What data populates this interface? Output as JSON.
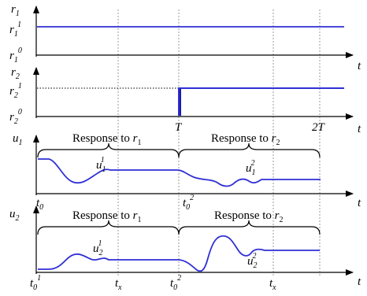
{
  "colors": {
    "signal": "#2f2fd6",
    "axis": "#000000",
    "grid": "#9a9a9a"
  },
  "panel1": {
    "y_label": "r",
    "y_label_sub": "1",
    "level_high": "r",
    "level_high_sub": "1",
    "level_high_sup": "1",
    "level_low": "r",
    "level_low_sub": "1",
    "level_low_sup": "0",
    "x_label": "t"
  },
  "panel2": {
    "y_label": "r",
    "y_label_sub": "2",
    "level_high": "r",
    "level_high_sub": "2",
    "level_high_sup": "1",
    "level_low": "r",
    "level_low_sub": "2",
    "level_low_sup": "0",
    "x_label": "t",
    "tick_T": "T",
    "tick_2T": "2T"
  },
  "panel3": {
    "y_label": "u",
    "y_label_sub": "1",
    "x_label": "t",
    "brace1_label": "Response to ",
    "brace1_var": "r",
    "brace1_sub": "1",
    "brace2_label": "Response to ",
    "brace2_var": "r",
    "brace2_sub": "2",
    "ann1": "u",
    "ann1_sub": "1",
    "ann1_sup": "1",
    "ann2": "u",
    "ann2_sub": "1",
    "ann2_sup": "2",
    "t0_left": "t",
    "t0_left_sub": "0",
    "t0_mid": "t",
    "t0_mid_sub": "0",
    "t0_mid_sup": "2"
  },
  "panel4": {
    "y_label": "u",
    "y_label_sub": "2",
    "x_label": "t",
    "brace1_label": "Response to ",
    "brace1_var": "r",
    "brace1_sub": "1",
    "brace2_label": "Response to ",
    "brace2_var": "r",
    "brace2_sub": "2",
    "ann1": "u",
    "ann1_sub": "2",
    "ann1_sup": "1",
    "ann2": "u",
    "ann2_sub": "2",
    "ann2_sup": "2",
    "t0_left": "t",
    "t0_left_sub": "0",
    "t0_left_sup": "1",
    "tx1": "t",
    "tx1_sub": "x",
    "t0_mid": "t",
    "t0_mid_sub": "0",
    "t0_mid_sup": "2",
    "tx2": "t",
    "tx2_sub": "x"
  }
}
